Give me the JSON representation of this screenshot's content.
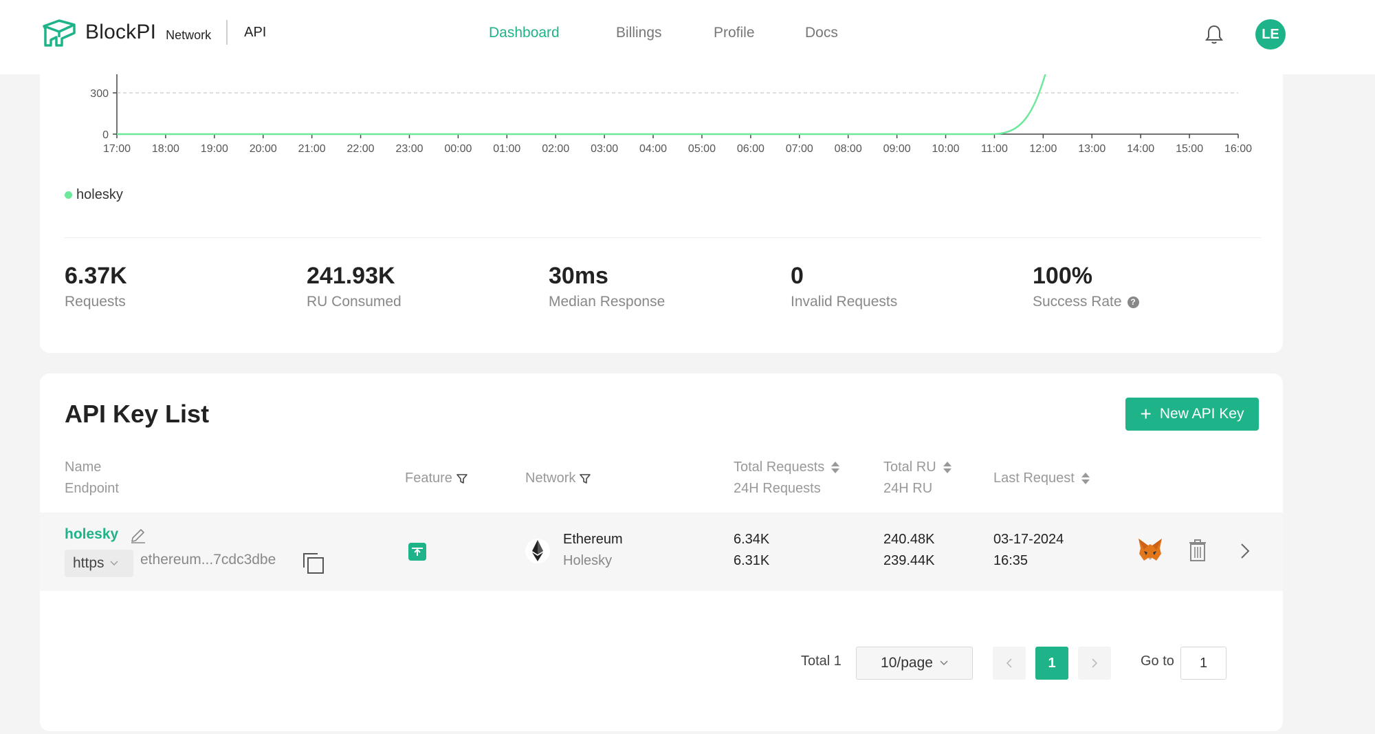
{
  "header": {
    "brand": "BlockPI",
    "brand_sub": "Network",
    "section": "API",
    "nav": [
      {
        "label": "Dashboard",
        "active": true
      },
      {
        "label": "Billings",
        "active": false
      },
      {
        "label": "Profile",
        "active": false
      },
      {
        "label": "Docs",
        "active": false
      }
    ],
    "avatar_initials": "LE",
    "accent_color": "#1fb38a"
  },
  "chart_data": {
    "type": "line",
    "x": [
      "17:00",
      "18:00",
      "19:00",
      "20:00",
      "21:00",
      "22:00",
      "23:00",
      "00:00",
      "01:00",
      "02:00",
      "03:00",
      "04:00",
      "05:00",
      "06:00",
      "07:00",
      "08:00",
      "09:00",
      "10:00",
      "11:00",
      "12:00",
      "13:00",
      "14:00",
      "15:00",
      "16:00"
    ],
    "y_ticks": [
      0,
      300
    ],
    "series": [
      {
        "name": "holesky",
        "color": "#6ee89b",
        "values": [
          0,
          0,
          0,
          0,
          0,
          0,
          0,
          0,
          0,
          0,
          0,
          0,
          0,
          0,
          0,
          0,
          0,
          0,
          0,
          null,
          null,
          null,
          null,
          null
        ]
      }
    ],
    "grid": true,
    "legend": "bottom-left"
  },
  "stats": [
    {
      "value": "6.37K",
      "label": "Requests"
    },
    {
      "value": "241.93K",
      "label": "RU Consumed"
    },
    {
      "value": "30ms",
      "label": "Median Response"
    },
    {
      "value": "0",
      "label": "Invalid Requests"
    },
    {
      "value": "100%",
      "label": "Success Rate",
      "help_icon": "question-circle-icon"
    }
  ],
  "api_list": {
    "title": "API Key List",
    "new_button": "New API Key",
    "columns": {
      "name": "Name",
      "endpoint": "Endpoint",
      "feature": "Feature",
      "network": "Network",
      "total_requests": "Total Requests",
      "requests_24h": "24H Requests",
      "total_ru": "Total RU",
      "ru_24h": "24H RU",
      "last_request": "Last Request"
    },
    "rows": [
      {
        "name": "holesky",
        "protocol": "https",
        "endpoint": "ethereum...7cdc3dbe",
        "network": "Ethereum",
        "network_sub": "Holesky",
        "total_requests": "6.34K",
        "requests_24h": "6.31K",
        "total_ru": "240.48K",
        "ru_24h": "239.44K",
        "last_request_date": "03-17-2024",
        "last_request_time": "16:35"
      }
    ]
  },
  "pagination": {
    "total": "Total 1",
    "page_size": "10/page",
    "current_page": "1",
    "goto_label": "Go to",
    "goto_value": "1"
  }
}
